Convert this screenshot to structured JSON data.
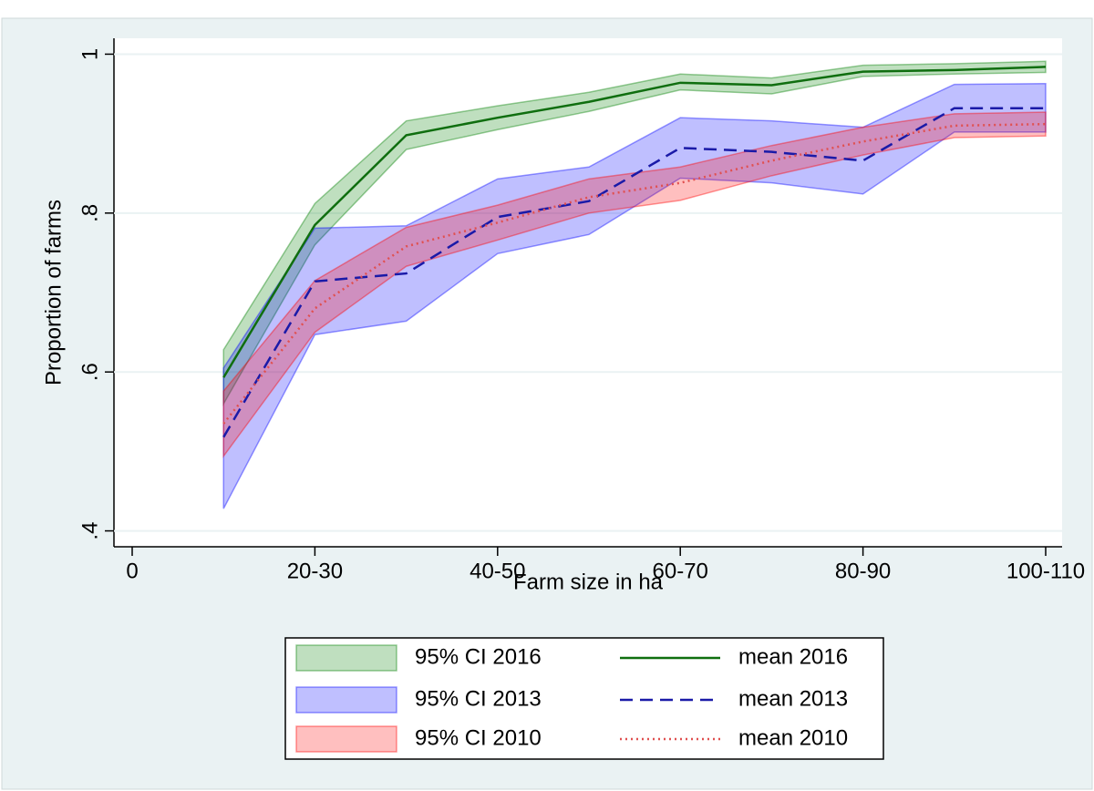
{
  "chart_data": {
    "type": "line-band",
    "xlabel": "Farm size in ha",
    "ylabel": "Proportion of farms",
    "x": [
      1,
      2,
      3,
      4,
      5,
      6,
      7,
      8,
      9,
      10
    ],
    "xlim": [
      0,
      10
    ],
    "xticks": [
      0,
      {
        "value": 2,
        "label": "20-30"
      },
      {
        "value": 4,
        "label": "40-50"
      },
      {
        "value": 6,
        "label": "60-70"
      },
      {
        "value": 8,
        "label": "80-90"
      },
      {
        "value": 10,
        "label": "100-110"
      }
    ],
    "ylim": [
      0.38,
      1.02
    ],
    "yticks": [
      {
        "value": 0.4,
        "label": ".4"
      },
      {
        "value": 0.6,
        "label": ".6"
      },
      {
        "value": 0.8,
        "label": ".8"
      },
      1
    ],
    "grid": true,
    "bands": [
      {
        "name": "95% CI 2016",
        "color": "#008000",
        "upper": [
          0.628,
          0.812,
          0.916,
          0.935,
          0.952,
          0.975,
          0.97,
          0.986,
          0.988,
          0.991
        ],
        "lower": [
          0.56,
          0.76,
          0.88,
          0.905,
          0.928,
          0.955,
          0.95,
          0.972,
          0.975,
          0.977
        ]
      },
      {
        "name": "95% CI 2013",
        "color": "#0000ff",
        "upper": [
          0.605,
          0.781,
          0.784,
          0.843,
          0.858,
          0.92,
          0.916,
          0.908,
          0.962,
          0.963
        ],
        "lower": [
          0.428,
          0.647,
          0.664,
          0.749,
          0.773,
          0.844,
          0.838,
          0.824,
          0.902,
          0.902
        ]
      },
      {
        "name": "95% CI 2010",
        "color": "#ff0000",
        "upper": [
          0.576,
          0.715,
          0.782,
          0.81,
          0.843,
          0.858,
          0.885,
          0.908,
          0.925,
          0.927
        ],
        "lower": [
          0.494,
          0.65,
          0.733,
          0.766,
          0.8,
          0.816,
          0.847,
          0.873,
          0.895,
          0.897
        ]
      }
    ],
    "series": [
      {
        "name": "mean 2016",
        "color": "#0f6e0f",
        "dash": "solid",
        "values": [
          0.593,
          0.785,
          0.898,
          0.92,
          0.94,
          0.964,
          0.961,
          0.978,
          0.98,
          0.984
        ]
      },
      {
        "name": "mean 2013",
        "color": "#1a1aa8",
        "dash": "dash",
        "values": [
          0.518,
          0.714,
          0.724,
          0.795,
          0.815,
          0.882,
          0.877,
          0.866,
          0.932,
          0.932
        ]
      },
      {
        "name": "mean 2010",
        "color": "#e05050",
        "dash": "dot",
        "values": [
          0.535,
          0.68,
          0.758,
          0.788,
          0.82,
          0.838,
          0.866,
          0.89,
          0.91,
          0.912
        ]
      }
    ]
  }
}
